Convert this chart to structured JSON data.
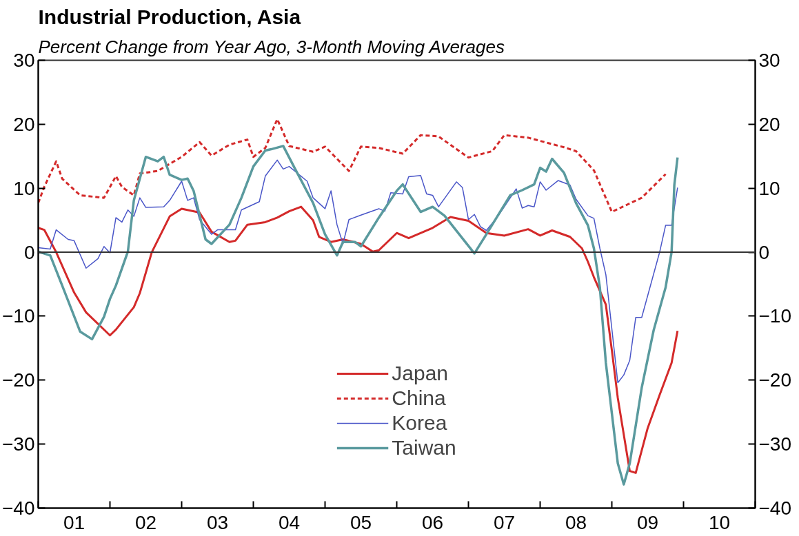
{
  "chart_data": {
    "type": "line",
    "title": "Industrial Production, Asia",
    "subtitle": "Percent Change from Year Ago, 3-Month Moving Averages",
    "xlim": [
      "2001-01",
      "2011-01"
    ],
    "xticks": [
      {
        "value": "2001-01",
        "label": null
      },
      {
        "value": "2001-07",
        "label": "01"
      },
      {
        "value": "2002-01",
        "label": null
      },
      {
        "value": "2002-07",
        "label": "02"
      },
      {
        "value": "2003-01",
        "label": null
      },
      {
        "value": "2003-07",
        "label": "03"
      },
      {
        "value": "2004-01",
        "label": null
      },
      {
        "value": "2004-07",
        "label": "04"
      },
      {
        "value": "2005-01",
        "label": null
      },
      {
        "value": "2005-07",
        "label": "05"
      },
      {
        "value": "2006-01",
        "label": null
      },
      {
        "value": "2006-07",
        "label": "06"
      },
      {
        "value": "2007-01",
        "label": null
      },
      {
        "value": "2007-07",
        "label": "07"
      },
      {
        "value": "2008-01",
        "label": null
      },
      {
        "value": "2008-07",
        "label": "08"
      },
      {
        "value": "2009-01",
        "label": null
      },
      {
        "value": "2009-07",
        "label": "09"
      },
      {
        "value": "2010-01",
        "label": null
      },
      {
        "value": "2010-07",
        "label": "10"
      },
      {
        "value": "2011-01",
        "label": null
      }
    ],
    "ylim": [
      -40,
      30
    ],
    "yticks": [
      -40,
      -30,
      -20,
      -10,
      0,
      10,
      20,
      30
    ],
    "y2lim": [
      -40,
      30
    ],
    "y2ticks": [
      -40,
      -30,
      -20,
      -10,
      0,
      10,
      20,
      30
    ],
    "grid": false,
    "legend": "bottom",
    "marker": "none",
    "ref_lines": [
      {
        "axis": "y",
        "value": 0,
        "color": "#333333",
        "line_style": "solid"
      }
    ],
    "series": [
      {
        "name": "Japan",
        "color": "#d42a2a",
        "line_style": "solid",
        "x": [
          "2001-01",
          "2001-02",
          "2001-04",
          "2001-07",
          "2001-09",
          "2002-01",
          "2002-02",
          "2002-05",
          "2002-06",
          "2002-08",
          "2002-11",
          "2003-01",
          "2003-04",
          "2003-06",
          "2003-09",
          "2003-10",
          "2003-12",
          "2004-03",
          "2004-05",
          "2004-07",
          "2004-09",
          "2004-11",
          "2004-12",
          "2005-02",
          "2005-04",
          "2005-07",
          "2005-09",
          "2005-10",
          "2006-01",
          "2006-03",
          "2006-07",
          "2006-10",
          "2007-01",
          "2007-04",
          "2007-07",
          "2007-11",
          "2008-01",
          "2008-03",
          "2008-06",
          "2008-08",
          "2008-09",
          "2008-10",
          "2008-12",
          "2009-01",
          "2009-02",
          "2009-04",
          "2009-05",
          "2009-07",
          "2009-09",
          "2009-11",
          "2009-12"
        ],
        "values": [
          3.8,
          3.5,
          0,
          -6.3,
          -9.4,
          -13.0,
          -12.1,
          -8.6,
          -6.4,
          0,
          5.6,
          6.8,
          6.2,
          3.2,
          1.6,
          1.8,
          4.3,
          4.7,
          5.4,
          6.4,
          7.1,
          5.0,
          2.4,
          1.6,
          2.0,
          1.3,
          0.1,
          0.3,
          3.0,
          2.2,
          3.8,
          5.5,
          4.9,
          3.0,
          2.6,
          3.6,
          2.6,
          3.4,
          2.4,
          0.6,
          -1.5,
          -3.9,
          -8.2,
          -15.3,
          -22.8,
          -34.2,
          -34.5,
          -27.5,
          -22.3,
          -17.3,
          -12.3
        ]
      },
      {
        "name": "China",
        "color": "#d42a2a",
        "line_style": "dashed",
        "x": [
          "2001-01",
          "2001-02",
          "2001-04",
          "2001-05",
          "2001-08",
          "2001-12",
          "2002-02",
          "2002-03",
          "2002-05",
          "2002-06",
          "2002-09",
          "2003-01",
          "2003-04",
          "2003-06",
          "2003-09",
          "2003-12",
          "2004-01",
          "2004-03",
          "2004-05",
          "2004-07",
          "2004-11",
          "2005-01",
          "2005-03",
          "2005-05",
          "2005-07",
          "2005-10",
          "2006-02",
          "2006-05",
          "2006-08",
          "2007-01",
          "2007-05",
          "2007-07",
          "2007-11",
          "2008-05",
          "2008-07",
          "2008-10",
          "2009-01",
          "2009-06",
          "2009-10"
        ],
        "values": [
          7.7,
          10.2,
          14.2,
          11.5,
          8.9,
          8.5,
          11.9,
          10.2,
          8.9,
          12.3,
          12.7,
          14.9,
          17.2,
          15.1,
          16.8,
          17.6,
          14.9,
          16.3,
          20.8,
          16.6,
          15.7,
          16.5,
          14.6,
          12.7,
          16.5,
          16.3,
          15.4,
          18.3,
          18.1,
          14.8,
          15.8,
          18.3,
          17.9,
          16.4,
          15.8,
          12.8,
          6.3,
          8.5,
          12.2
        ]
      },
      {
        "name": "Korea",
        "color": "#4a56c8",
        "line_style": "solid",
        "x": [
          "2001-01",
          "2001-03",
          "2001-04",
          "2001-06",
          "2001-07",
          "2001-09",
          "2001-11",
          "2001-12",
          "2002-01",
          "2002-02",
          "2002-03",
          "2002-04",
          "2002-05",
          "2002-06",
          "2002-07",
          "2002-10",
          "2002-11",
          "2003-01",
          "2003-02",
          "2003-03",
          "2003-04",
          "2003-06",
          "2003-07",
          "2003-08",
          "2003-10",
          "2003-11",
          "2004-02",
          "2004-03",
          "2004-05",
          "2004-06",
          "2004-07",
          "2004-10",
          "2004-11",
          "2005-01",
          "2005-02",
          "2005-03",
          "2005-04",
          "2005-05",
          "2005-07",
          "2005-10",
          "2005-11",
          "2005-12",
          "2006-02",
          "2006-03",
          "2006-05",
          "2006-06",
          "2006-07",
          "2006-08",
          "2006-11",
          "2006-12",
          "2007-01",
          "2007-02",
          "2007-03",
          "2007-04",
          "2007-06",
          "2007-09",
          "2007-10",
          "2007-11",
          "2007-12",
          "2008-01",
          "2008-02",
          "2008-04",
          "2008-06",
          "2008-07",
          "2008-09",
          "2008-10",
          "2008-11",
          "2008-12",
          "2009-02",
          "2009-03",
          "2009-04",
          "2009-05",
          "2009-06",
          "2009-09",
          "2009-10",
          "2009-11",
          "2009-12"
        ],
        "values": [
          0.7,
          0.5,
          3.5,
          2.0,
          1.8,
          -2.5,
          -1.0,
          0.9,
          -0.1,
          5.4,
          4.7,
          6.6,
          5.6,
          8.5,
          7.0,
          7.1,
          8.1,
          11.1,
          8.1,
          8.5,
          5.1,
          2.8,
          3.5,
          3.5,
          3.5,
          6.6,
          7.9,
          11.9,
          14.4,
          13.0,
          13.4,
          11.1,
          8.5,
          6.8,
          9.6,
          4.3,
          1.3,
          5.1,
          5.8,
          6.8,
          6.4,
          9.3,
          9.1,
          11.8,
          12.0,
          9.1,
          8.9,
          7.1,
          11.0,
          10.1,
          5.1,
          5.9,
          4.0,
          3.4,
          5.7,
          9.9,
          6.9,
          7.3,
          7.1,
          11.0,
          9.7,
          11.2,
          10.5,
          8.3,
          5.7,
          5.3,
          0.6,
          -3.5,
          -20.4,
          -19.2,
          -16.9,
          -10.2,
          -10.2,
          0,
          4.2,
          4.2,
          10.1
        ]
      },
      {
        "name": "Taiwan",
        "color": "#5a9a9e",
        "line_style": "solid",
        "x": [
          "2001-01",
          "2001-03",
          "2001-05",
          "2001-08",
          "2001-10",
          "2001-12",
          "2002-01",
          "2002-02",
          "2002-04",
          "2002-05",
          "2002-07",
          "2002-09",
          "2002-10",
          "2002-11",
          "2003-01",
          "2003-02",
          "2003-03",
          "2003-05",
          "2003-06",
          "2003-09",
          "2003-11",
          "2004-01",
          "2004-03",
          "2004-04",
          "2004-06",
          "2004-08",
          "2004-11",
          "2005-01",
          "2005-03",
          "2005-04",
          "2005-06",
          "2005-07",
          "2005-10",
          "2006-01",
          "2006-02",
          "2006-05",
          "2006-07",
          "2006-09",
          "2007-02",
          "2007-04",
          "2007-08",
          "2007-10",
          "2007-12",
          "2008-01",
          "2008-02",
          "2008-03",
          "2008-05",
          "2008-07",
          "2008-09",
          "2008-10",
          "2008-11",
          "2008-12",
          "2009-02",
          "2009-03",
          "2009-04",
          "2009-06",
          "2009-08",
          "2009-10",
          "2009-11-01",
          "2009-11-15",
          "2009-12-01"
        ],
        "values": [
          0.1,
          -0.5,
          -5.2,
          -12.4,
          -13.6,
          -10.1,
          -7.3,
          -5.2,
          0.1,
          8.1,
          14.9,
          14.2,
          14.9,
          12.1,
          11.3,
          11.5,
          9.6,
          2.0,
          1.3,
          4.3,
          8.5,
          13.4,
          15.9,
          16.1,
          16.6,
          13.0,
          7.7,
          2.8,
          -0.5,
          1.6,
          1.6,
          0.9,
          5.4,
          9.6,
          10.6,
          6.3,
          7.1,
          5.7,
          -0.2,
          2.8,
          8.9,
          9.7,
          10.6,
          13.2,
          12.6,
          14.6,
          12.4,
          7.7,
          4.2,
          0.6,
          -5.5,
          -17.3,
          -33.0,
          -36.3,
          -33.0,
          -21.2,
          -12.2,
          -5.5,
          0,
          10.5,
          14.8
        ]
      }
    ]
  }
}
